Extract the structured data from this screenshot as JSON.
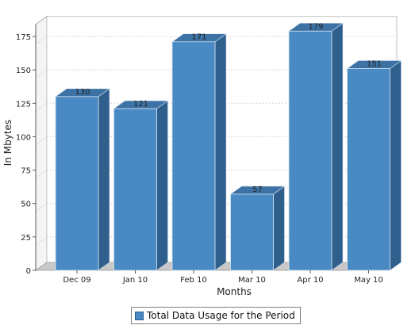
{
  "chart_data": {
    "type": "bar",
    "categories": [
      "Dec 09",
      "Jan 10",
      "Feb 10",
      "Mar 10",
      "Apr 10",
      "May 10"
    ],
    "series": [
      {
        "name": "Total Data Usage for the Period",
        "values": [
          130,
          121,
          171,
          57,
          179,
          151
        ]
      }
    ],
    "xlabel": "Months",
    "ylabel": "In Mbytes",
    "ylim": [
      0,
      190
    ],
    "yticks": [
      0,
      25,
      50,
      75,
      100,
      125,
      150,
      175
    ],
    "grid": true,
    "legend_position": "bottom",
    "colors": {
      "bar_front": "#4a8ac4",
      "bar_side": "#2f5f8c",
      "bar_top": "#3d72a5",
      "bar_edge": "#d8e4ef",
      "wall": "#c8c8c8"
    }
  }
}
